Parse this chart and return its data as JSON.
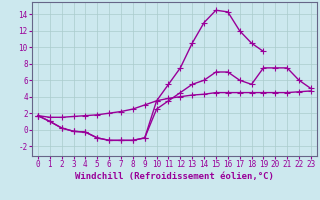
{
  "background_color": "#cce8ee",
  "grid_color": "#aacccc",
  "line_color": "#990099",
  "marker": "+",
  "markersize": 4,
  "linewidth": 1.0,
  "xlabel": "Windchill (Refroidissement éolien,°C)",
  "xlabel_fontsize": 6.5,
  "tick_fontsize": 5.5,
  "xlim": [
    -0.5,
    23.5
  ],
  "ylim": [
    -3.2,
    15.5
  ],
  "yticks": [
    -2,
    0,
    2,
    4,
    6,
    8,
    10,
    12,
    14
  ],
  "series": [
    [
      1.7,
      1.0,
      0.2,
      -0.2,
      -0.3,
      -1.0,
      -1.3,
      -1.3,
      -1.3,
      -1.0,
      3.5,
      5.5,
      7.5,
      10.5,
      13.0,
      14.5,
      14.3,
      12.0,
      10.5,
      9.5,
      null,
      null,
      null,
      null
    ],
    [
      1.7,
      1.0,
      0.2,
      -0.2,
      -0.3,
      -1.0,
      -1.3,
      -1.3,
      -1.3,
      -1.0,
      2.5,
      3.5,
      4.5,
      5.5,
      6.0,
      7.0,
      7.0,
      6.0,
      5.5,
      7.5,
      7.5,
      7.5,
      6.0,
      5.0
    ],
    [
      1.7,
      1.5,
      1.5,
      1.6,
      1.7,
      1.8,
      2.0,
      2.2,
      2.5,
      3.0,
      3.5,
      3.8,
      4.0,
      4.2,
      4.3,
      4.5,
      4.5,
      4.5,
      4.5,
      4.5,
      4.5,
      4.5,
      4.6,
      4.7
    ]
  ]
}
